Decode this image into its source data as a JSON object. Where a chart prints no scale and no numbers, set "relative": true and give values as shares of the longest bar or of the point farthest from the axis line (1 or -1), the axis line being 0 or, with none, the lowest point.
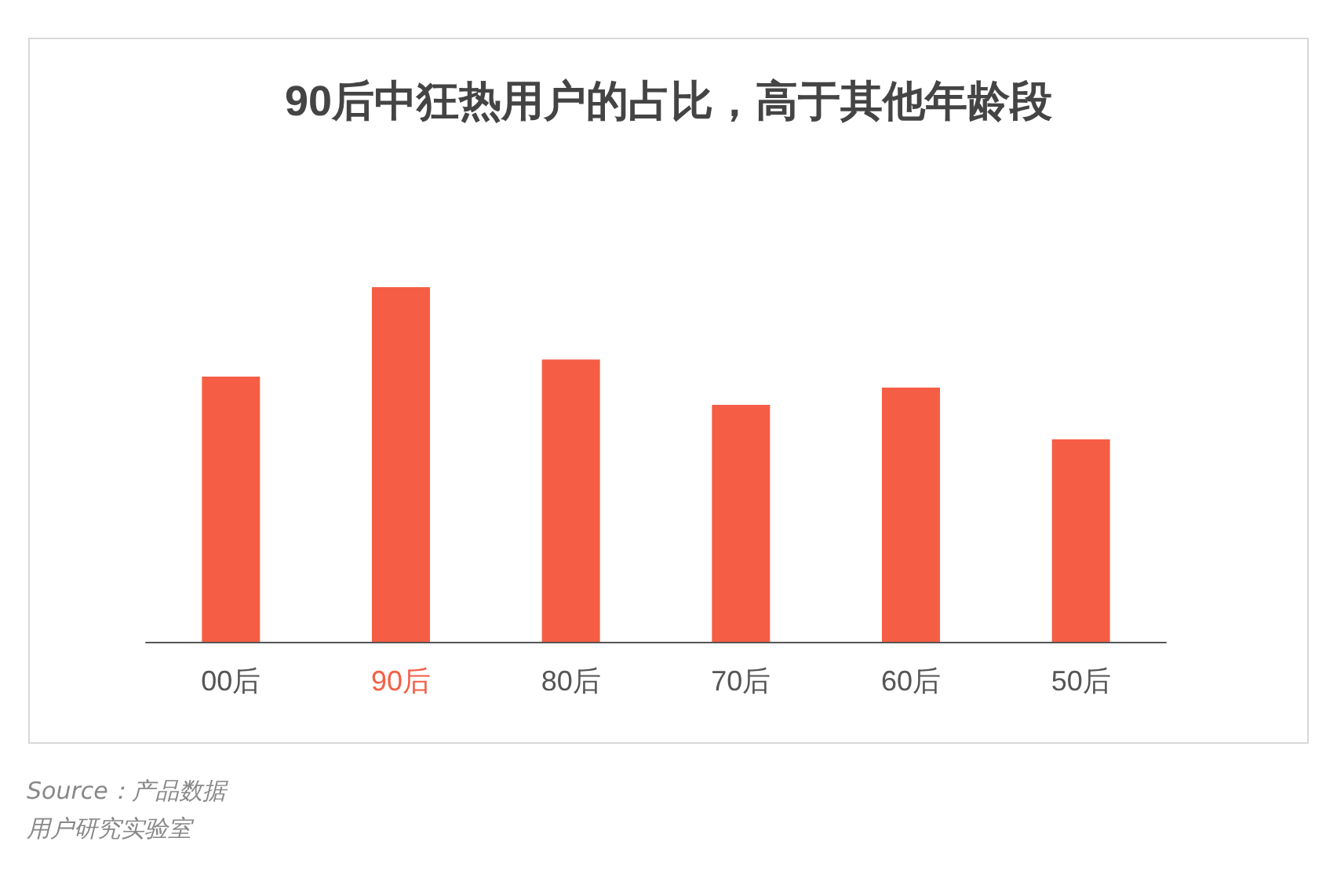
{
  "chart_data": {
    "type": "bar",
    "relative": true,
    "title": "90后中狂热用户的占比，高于其他年龄段",
    "categories": [
      "00后",
      "90后",
      "80后",
      "70后",
      "60后",
      "50后"
    ],
    "values": [
      0.748,
      1,
      0.796,
      0.668,
      0.717,
      0.571
    ],
    "color": "#f55e45",
    "annotations": [
      "Source：产品数据",
      "用户研究实验室"
    ]
  }
}
